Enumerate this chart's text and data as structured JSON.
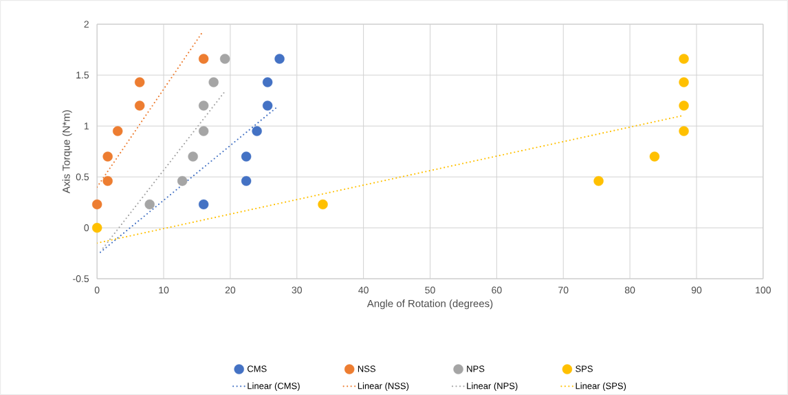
{
  "chart_data": {
    "type": "scatter",
    "xlabel": "Angle of Rotation (degrees)",
    "ylabel": "Axis Torque (N*m)",
    "xlim": [
      0,
      100
    ],
    "xticks": [
      0,
      10,
      20,
      30,
      40,
      50,
      60,
      70,
      80,
      90,
      100
    ],
    "ylim": [
      -0.5,
      2
    ],
    "yticks": [
      -0.5,
      0,
      0.5,
      1,
      1.5,
      2
    ],
    "grid": true,
    "legend": "bottom",
    "marker": "circle",
    "series": [
      {
        "name": "CMS",
        "color": "#4472c4",
        "x": [
          16.0,
          22.4,
          22.4,
          24.0,
          25.6,
          25.6,
          27.4
        ],
        "values": [
          0.23,
          0.46,
          0.7,
          0.95,
          1.2,
          1.43,
          1.66
        ]
      },
      {
        "name": "NSS",
        "color": "#ed7d31",
        "x": [
          0,
          1.6,
          1.6,
          3.1,
          6.4,
          6.4,
          16.0
        ],
        "values": [
          0.23,
          0.46,
          0.7,
          0.95,
          1.2,
          1.43,
          1.66
        ]
      },
      {
        "name": "NPS",
        "color": "#a5a5a5",
        "x": [
          7.9,
          12.8,
          14.4,
          16.0,
          16.0,
          17.5,
          19.2
        ],
        "values": [
          0.23,
          0.46,
          0.7,
          0.95,
          1.2,
          1.43,
          1.66
        ]
      },
      {
        "name": "SPS",
        "color": "#ffc000",
        "x": [
          0,
          33.9,
          75.3,
          83.7,
          88.1,
          88.1,
          88.1,
          88.1
        ],
        "values": [
          0,
          0.23,
          0.46,
          0.7,
          0.95,
          1.2,
          1.43,
          1.66
        ]
      },
      {
        "name": "Linear (CMS)",
        "type": "line",
        "marker": "none",
        "line_style": "dotted",
        "color": "#4472c4",
        "x": [
          0.5,
          27.1
        ],
        "values": [
          -0.24,
          1.19
        ]
      },
      {
        "name": "Linear (NSS)",
        "type": "line",
        "marker": "none",
        "line_style": "dotted",
        "color": "#ed7d31",
        "x": [
          0,
          15.7
        ],
        "values": [
          0.4,
          1.91
        ]
      },
      {
        "name": "Linear (NPS)",
        "type": "line",
        "marker": "none",
        "line_style": "dotted",
        "color": "#a5a5a5",
        "x": [
          0.9,
          19.2
        ],
        "values": [
          -0.2,
          1.34
        ]
      },
      {
        "name": "Linear (SPS)",
        "type": "line",
        "marker": "none",
        "line_style": "dotted",
        "color": "#ffc000",
        "x": [
          0,
          87.8
        ],
        "values": [
          -0.15,
          1.1
        ]
      }
    ]
  }
}
